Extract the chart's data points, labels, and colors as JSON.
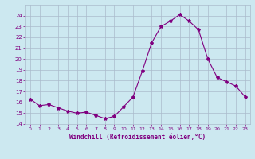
{
  "x": [
    0,
    1,
    2,
    3,
    4,
    5,
    6,
    7,
    8,
    9,
    10,
    11,
    12,
    13,
    14,
    15,
    16,
    17,
    18,
    19,
    20,
    21,
    22,
    23
  ],
  "y": [
    16.3,
    15.7,
    15.8,
    15.5,
    15.2,
    15.0,
    15.1,
    14.8,
    14.5,
    14.7,
    15.6,
    16.5,
    18.9,
    21.5,
    23.0,
    23.5,
    24.1,
    23.5,
    22.7,
    20.0,
    18.3,
    17.9,
    17.5,
    16.5
  ],
  "line_color": "#800080",
  "marker": "*",
  "marker_size": 3,
  "bg_color": "#cce8f0",
  "grid_color": "#aabbcc",
  "xlabel": "Windchill (Refroidissement éolien,°C)",
  "xlabel_color": "#800080",
  "tick_color": "#800080",
  "ylim": [
    14,
    25
  ],
  "xlim": [
    -0.5,
    23.5
  ],
  "yticks": [
    14,
    15,
    16,
    17,
    18,
    19,
    20,
    21,
    22,
    23,
    24
  ],
  "xticks": [
    0,
    1,
    2,
    3,
    4,
    5,
    6,
    7,
    8,
    9,
    10,
    11,
    12,
    13,
    14,
    15,
    16,
    17,
    18,
    19,
    20,
    21,
    22,
    23
  ]
}
